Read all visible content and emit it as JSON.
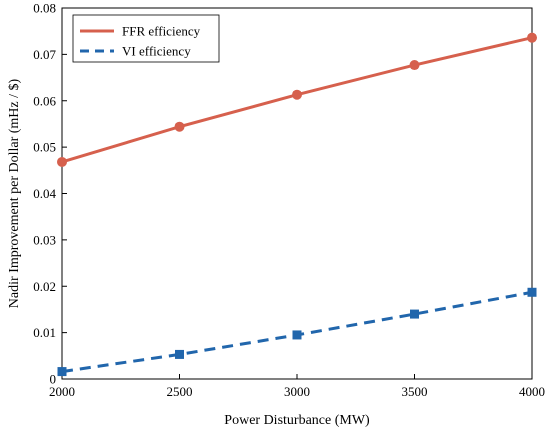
{
  "chart_data": {
    "type": "line",
    "title": "",
    "xlabel": "Power Disturbance (MW)",
    "ylabel": "Nadir Improvement per Dollar  (mHz / $)",
    "x": [
      2000,
      2500,
      3000,
      3500,
      4000
    ],
    "xlim": [
      2000,
      4000
    ],
    "ylim": [
      0,
      0.08
    ],
    "xticks": [
      2000,
      2500,
      3000,
      3500,
      4000
    ],
    "yticks": [
      0,
      0.01,
      0.02,
      0.03,
      0.04,
      0.05,
      0.06,
      0.07,
      0.08
    ],
    "xtick_labels": [
      "2000",
      "2500",
      "3000",
      "3500",
      "4000"
    ],
    "ytick_labels": [
      "0",
      "0.01",
      "0.02",
      "0.03",
      "0.04",
      "0.05",
      "0.06",
      "0.07",
      "0.08"
    ],
    "grid": false,
    "legend_position": "top-left",
    "series": [
      {
        "name": "FFR efficiency",
        "values": [
          0.0468,
          0.0544,
          0.0613,
          0.0677,
          0.0736
        ],
        "color": "#d6604d",
        "line_style": "solid",
        "marker": "circle"
      },
      {
        "name": "VI efficiency",
        "values": [
          0.0016,
          0.0053,
          0.0095,
          0.014,
          0.0187
        ],
        "color": "#2166ac",
        "line_style": "dashed",
        "marker": "square"
      }
    ]
  }
}
